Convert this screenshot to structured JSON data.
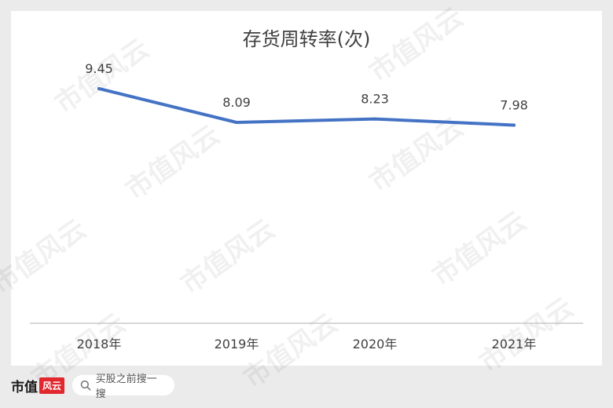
{
  "chart_data": {
    "type": "line",
    "title": "存货周转率(次)",
    "categories": [
      "2018年",
      "2019年",
      "2020年",
      "2021年"
    ],
    "values": [
      9.45,
      8.09,
      8.23,
      7.98
    ],
    "data_labels": [
      "9.45",
      "8.09",
      "8.23",
      "7.98"
    ],
    "line_color": "#4472c4",
    "grid": false,
    "legend": "none"
  },
  "watermark": "市值风云",
  "footer": {
    "logo_text": "市值",
    "logo_badge": "风云",
    "search_placeholder": "买股之前搜一搜"
  }
}
